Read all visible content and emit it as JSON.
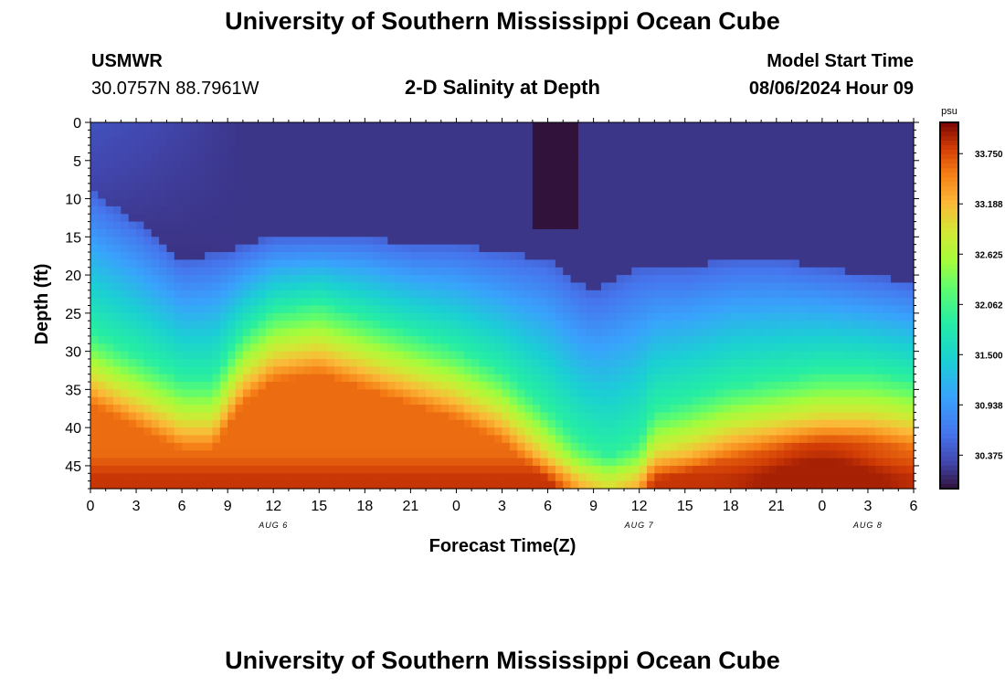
{
  "header": {
    "title_top": "University of Southern Mississippi Ocean Cube",
    "station_name": "USMWR",
    "station_coords": "30.0757N  88.7961W",
    "plot_title": "2-D Salinity at Depth",
    "model_label": "Model Start Time",
    "model_time": "08/06/2024 Hour 09",
    "title_bottom": "University of Southern Mississippi Ocean Cube"
  },
  "chart_data": {
    "type": "heatmap",
    "ylabel": "Depth (ft)",
    "xlabel": "Forecast Time(Z)",
    "y_ticks": [
      "0",
      "5",
      "10",
      "15",
      "20",
      "25",
      "30",
      "35",
      "40",
      "45"
    ],
    "ylim": [
      0,
      48
    ],
    "y_inverted": true,
    "x_ticks": [
      "0",
      "3",
      "6",
      "9",
      "12",
      "15",
      "18",
      "21",
      "0",
      "3",
      "6",
      "9",
      "12",
      "15",
      "18",
      "21",
      "0",
      "3",
      "6"
    ],
    "xlim_hours": [
      0,
      54
    ],
    "date_labels": [
      {
        "label": "AUG 6",
        "hour": 12
      },
      {
        "label": "AUG 7",
        "hour": 36
      },
      {
        "label": "AUG 8",
        "hour": 51
      }
    ],
    "colorbar": {
      "unit": "psu",
      "ticks": [
        "33.750",
        "33.188",
        "32.625",
        "32.062",
        "31.500",
        "30.938",
        "30.375"
      ],
      "range": [
        30.0,
        34.1
      ]
    },
    "fields": {
      "deep_layer_top_ft": [
        {
          "hour": 0,
          "depth": 28
        },
        {
          "hour": 3,
          "depth": 31
        },
        {
          "hour": 6,
          "depth": 34
        },
        {
          "hour": 8,
          "depth": 34
        },
        {
          "hour": 10,
          "depth": 28
        },
        {
          "hour": 12,
          "depth": 25
        },
        {
          "hour": 15,
          "depth": 24
        },
        {
          "hour": 18,
          "depth": 26
        },
        {
          "hour": 21,
          "depth": 28
        },
        {
          "hour": 24,
          "depth": 30
        },
        {
          "hour": 27,
          "depth": 33
        },
        {
          "hour": 30,
          "depth": 38
        },
        {
          "hour": 32,
          "depth": 42
        },
        {
          "hour": 34,
          "depth": 44
        },
        {
          "hour": 36,
          "depth": 42
        },
        {
          "hour": 37,
          "depth": 38
        },
        {
          "hour": 39,
          "depth": 37
        },
        {
          "hour": 42,
          "depth": 35
        },
        {
          "hour": 45,
          "depth": 34
        },
        {
          "hour": 48,
          "depth": 33
        },
        {
          "hour": 51,
          "depth": 33
        },
        {
          "hour": 54,
          "depth": 34
        }
      ],
      "fresh_layer_bottom_ft": [
        {
          "hour": 0,
          "depth": 9
        },
        {
          "hour": 3,
          "depth": 13
        },
        {
          "hour": 6,
          "depth": 18
        },
        {
          "hour": 9,
          "depth": 17
        },
        {
          "hour": 12,
          "depth": 15
        },
        {
          "hour": 15,
          "depth": 15
        },
        {
          "hour": 18,
          "depth": 15
        },
        {
          "hour": 21,
          "depth": 16
        },
        {
          "hour": 24,
          "depth": 16
        },
        {
          "hour": 27,
          "depth": 17
        },
        {
          "hour": 30,
          "depth": 18
        },
        {
          "hour": 32,
          "depth": 21
        },
        {
          "hour": 33,
          "depth": 22
        },
        {
          "hour": 34,
          "depth": 21
        },
        {
          "hour": 36,
          "depth": 19
        },
        {
          "hour": 39,
          "depth": 19
        },
        {
          "hour": 42,
          "depth": 18
        },
        {
          "hour": 45,
          "depth": 18
        },
        {
          "hour": 48,
          "depth": 19
        },
        {
          "hour": 51,
          "depth": 20
        },
        {
          "hour": 54,
          "depth": 21
        }
      ],
      "max_salinity_psu": 33.95,
      "surface_salinity_psu": 30.2,
      "fresh_core": {
        "hour_start": 29,
        "hour_end": 32,
        "depth_end_ft": 14,
        "salinity_psu": 29.6
      }
    }
  }
}
